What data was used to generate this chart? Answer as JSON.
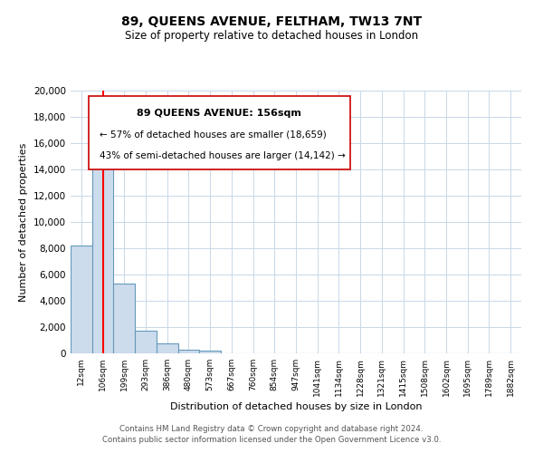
{
  "title": "89, QUEENS AVENUE, FELTHAM, TW13 7NT",
  "subtitle": "Size of property relative to detached houses in London",
  "xlabel": "Distribution of detached houses by size in London",
  "ylabel": "Number of detached properties",
  "categories": [
    "12sqm",
    "106sqm",
    "199sqm",
    "293sqm",
    "386sqm",
    "480sqm",
    "573sqm",
    "667sqm",
    "760sqm",
    "854sqm",
    "947sqm",
    "1041sqm",
    "1134sqm",
    "1228sqm",
    "1321sqm",
    "1415sqm",
    "1508sqm",
    "1602sqm",
    "1695sqm",
    "1789sqm",
    "1882sqm"
  ],
  "bar_heights": [
    8200,
    16600,
    5300,
    1750,
    750,
    300,
    200,
    0,
    0,
    0,
    0,
    0,
    0,
    0,
    0,
    0,
    0,
    0,
    0,
    0,
    0
  ],
  "bar_color": "#ccdcec",
  "bar_edge_color": "#6699bb",
  "ylim": [
    0,
    20000
  ],
  "yticks": [
    0,
    2000,
    4000,
    6000,
    8000,
    10000,
    12000,
    14000,
    16000,
    18000,
    20000
  ],
  "red_line_x": 1.5,
  "annotation_title": "89 QUEENS AVENUE: 156sqm",
  "annotation_line1": "← 57% of detached houses are smaller (18,659)",
  "annotation_line2": "43% of semi-detached houses are larger (14,142) →",
  "footer_line1": "Contains HM Land Registry data © Crown copyright and database right 2024.",
  "footer_line2": "Contains public sector information licensed under the Open Government Licence v3.0.",
  "background_color": "#ffffff",
  "grid_color": "#c8d8e8"
}
